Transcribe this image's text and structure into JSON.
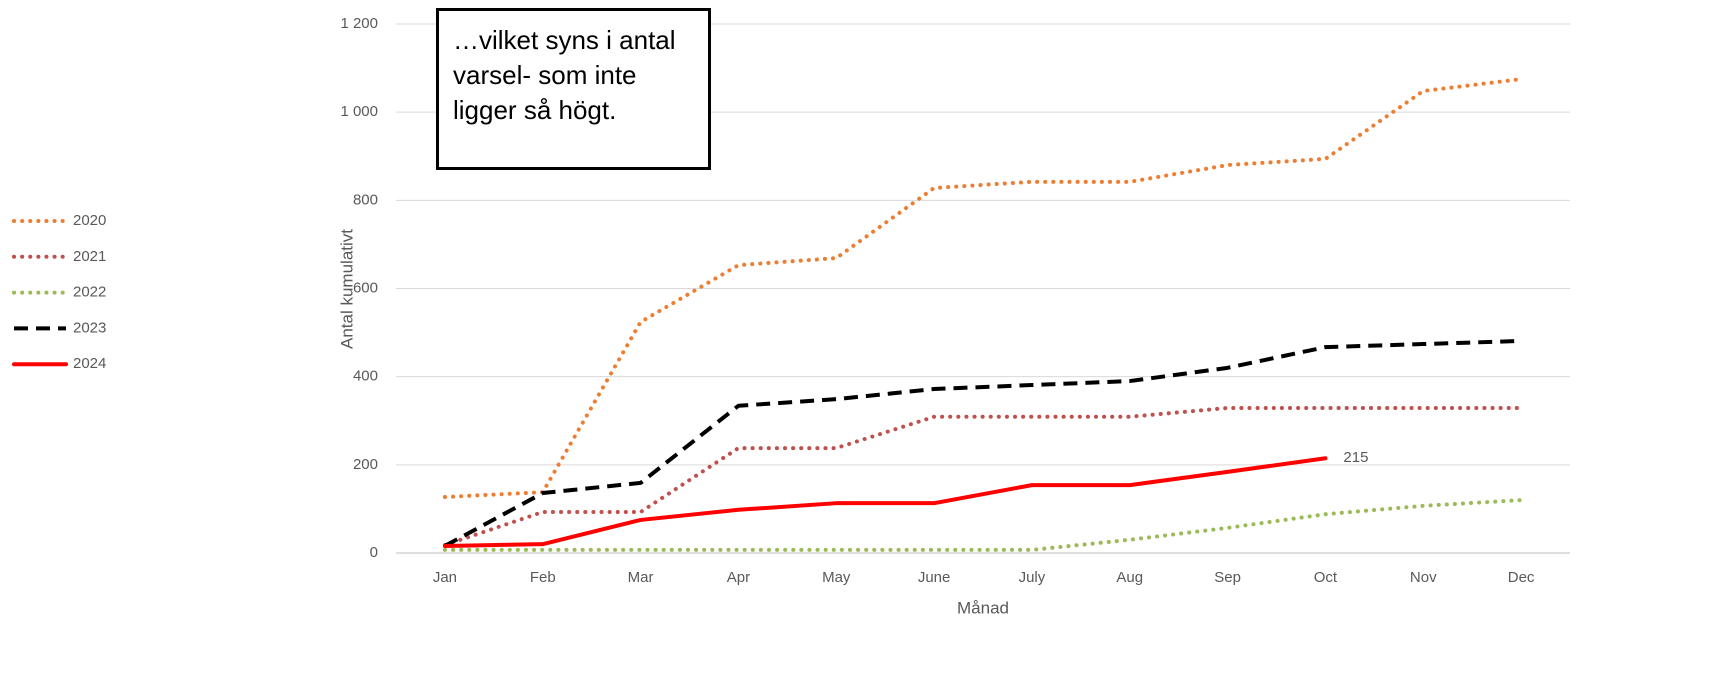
{
  "chart_data": {
    "type": "line",
    "annotation": "…vilket syns i antal varsel- som inte ligger så högt.",
    "x_label": "Månad",
    "y_label": "Antal kumulativt",
    "categories": [
      "Jan",
      "Feb",
      "Mar",
      "Apr",
      "May",
      "June",
      "July",
      "Aug",
      "Sep",
      "Oct",
      "Nov",
      "Dec"
    ],
    "series": [
      {
        "name": "2020",
        "color": "#ED7D31",
        "dash": "dotted",
        "values": [
          127,
          138,
          524,
          653,
          669,
          828,
          842,
          842,
          880,
          894,
          1048,
          1075
        ]
      },
      {
        "name": "2021",
        "color": "#C0504D",
        "dash": "dotted",
        "values": [
          18,
          93,
          93,
          238,
          238,
          309,
          309,
          309,
          329,
          329,
          329,
          329
        ]
      },
      {
        "name": "2022",
        "color": "#9BBB59",
        "dash": "dotted",
        "values": [
          7,
          7,
          7,
          7,
          7,
          7,
          7,
          30,
          57,
          88,
          107,
          120
        ]
      },
      {
        "name": "2023",
        "color": "#000000",
        "dash": "dashed",
        "values": [
          16,
          136,
          159,
          334,
          349,
          372,
          381,
          390,
          420,
          467,
          474,
          481
        ]
      },
      {
        "name": "2024",
        "color": "#FF0000",
        "dash": "solid",
        "values": [
          16,
          20,
          75,
          98,
          113,
          113,
          154,
          154,
          184,
          215,
          null,
          null
        ]
      }
    ],
    "data_label_point": [
      4,
      9
    ],
    "ylim": [
      0,
      1200
    ],
    "yticks": [
      0,
      200,
      400,
      600,
      800,
      {
        "value": 1000,
        "label": "1 000"
      },
      {
        "value": 1200,
        "label": "1 200"
      }
    ],
    "grid": true,
    "legend": "left"
  }
}
